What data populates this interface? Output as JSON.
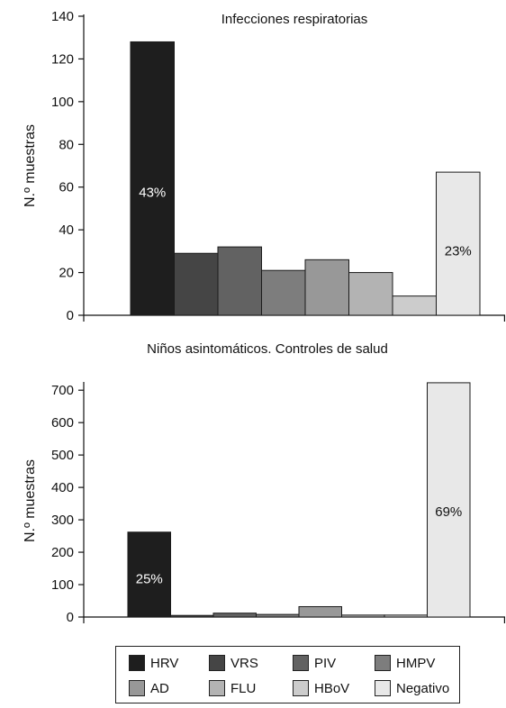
{
  "chart_data": [
    {
      "type": "bar",
      "title": "Infecciones respiratorias",
      "ylabel": "N.º muestras",
      "ylim": [
        0,
        140
      ],
      "yticks": [
        0,
        20,
        40,
        60,
        80,
        100,
        120,
        140
      ],
      "series": [
        {
          "name": "HRV",
          "values": [
            128
          ],
          "color": "#1e1e1e",
          "label": "43%"
        },
        {
          "name": "VRS",
          "values": [
            29
          ],
          "color": "#454545"
        },
        {
          "name": "PIV",
          "values": [
            32
          ],
          "color": "#626262"
        },
        {
          "name": "HMPV",
          "values": [
            21
          ],
          "color": "#7d7d7d"
        },
        {
          "name": "AD",
          "values": [
            26
          ],
          "color": "#989898"
        },
        {
          "name": "FLU",
          "values": [
            20
          ],
          "color": "#b3b3b3"
        },
        {
          "name": "HBoV",
          "values": [
            9
          ],
          "color": "#cccccc"
        },
        {
          "name": "Negativo",
          "values": [
            67
          ],
          "color": "#e8e8e8",
          "label": "23%"
        }
      ]
    },
    {
      "type": "bar",
      "title": "Niños asintomáticos. Controles de salud",
      "ylabel": "N.º muestras",
      "ylim": [
        0,
        720
      ],
      "yticks": [
        0,
        100,
        200,
        300,
        400,
        500,
        600,
        700
      ],
      "series": [
        {
          "name": "HRV",
          "values": [
            262
          ],
          "color": "#1e1e1e",
          "label": "25%"
        },
        {
          "name": "VRS",
          "values": [
            5
          ],
          "color": "#454545"
        },
        {
          "name": "PIV",
          "values": [
            12
          ],
          "color": "#626262"
        },
        {
          "name": "HMPV",
          "values": [
            8
          ],
          "color": "#7d7d7d"
        },
        {
          "name": "AD",
          "values": [
            32
          ],
          "color": "#989898"
        },
        {
          "name": "FLU",
          "values": [
            6
          ],
          "color": "#b3b3b3"
        },
        {
          "name": "HBoV",
          "values": [
            6
          ],
          "color": "#cccccc"
        },
        {
          "name": "Negativo",
          "values": [
            723
          ],
          "color": "#e8e8e8",
          "label": "69%"
        }
      ]
    }
  ],
  "legend": {
    "items": [
      {
        "label": "HRV",
        "color": "#1e1e1e"
      },
      {
        "label": "VRS",
        "color": "#454545"
      },
      {
        "label": "PIV",
        "color": "#626262"
      },
      {
        "label": "HMPV",
        "color": "#7d7d7d"
      },
      {
        "label": "AD",
        "color": "#989898"
      },
      {
        "label": "FLU",
        "color": "#b3b3b3"
      },
      {
        "label": "HBoV",
        "color": "#cccccc"
      },
      {
        "label": "Negativo",
        "color": "#e8e8e8"
      }
    ]
  }
}
